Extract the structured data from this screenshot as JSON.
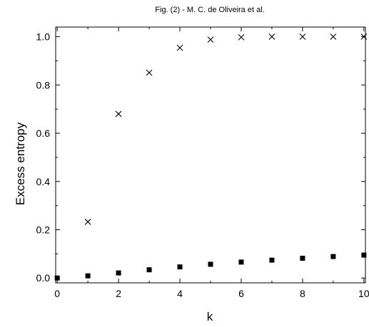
{
  "chart_data": {
    "type": "scatter",
    "title": "Fig. (2)  - M. C. de Oliveira et al.",
    "xlabel": "k",
    "ylabel": "Excess entropy",
    "xlim": [
      -0.05,
      10.05
    ],
    "ylim": [
      -0.02,
      1.04
    ],
    "xticks": [
      0,
      2,
      4,
      6,
      8,
      10
    ],
    "xtick_labels": [
      "0",
      "2",
      "4",
      "6",
      "8",
      "10"
    ],
    "yticks": [
      0.0,
      0.2,
      0.4,
      0.6,
      0.8,
      1.0
    ],
    "ytick_labels": [
      "0.0",
      "0.2",
      "0.4",
      "0.6",
      "0.8",
      "1.0"
    ],
    "grid": false,
    "series": [
      {
        "marker": "cross",
        "color": "#000000",
        "x": [
          1,
          2,
          3,
          4,
          5,
          6,
          7,
          8,
          9,
          10
        ],
        "y": [
          0.233,
          0.68,
          0.851,
          0.954,
          0.988,
          0.998,
          1.0,
          1.0,
          1.0,
          1.0
        ]
      },
      {
        "marker": "square",
        "color": "#000000",
        "x": [
          0,
          1,
          2,
          3,
          4,
          5,
          6,
          7,
          8,
          9,
          10
        ],
        "y": [
          0.0,
          0.009,
          0.021,
          0.034,
          0.046,
          0.057,
          0.066,
          0.074,
          0.082,
          0.089,
          0.095
        ]
      }
    ]
  }
}
